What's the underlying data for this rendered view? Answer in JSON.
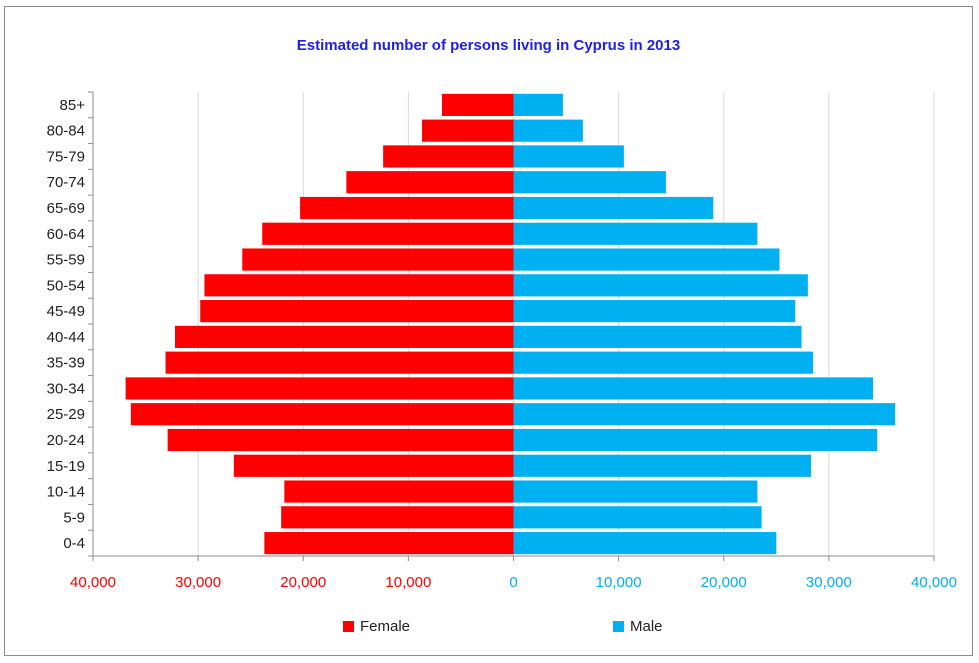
{
  "chart_data": {
    "type": "bar",
    "orientation": "horizontal",
    "title": "Estimated number of persons living in Cyprus in 2013",
    "categories": [
      "0-4",
      "5-9",
      "10-14",
      "15-19",
      "20-24",
      "25-29",
      "30-34",
      "35-39",
      "40-44",
      "45-49",
      "50-54",
      "55-59",
      "60-64",
      "65-69",
      "70-74",
      "75-79",
      "80-84",
      "85+"
    ],
    "series": [
      {
        "name": "Female",
        "color": "#ff0000",
        "values": [
          23700,
          22100,
          21800,
          26600,
          32900,
          36400,
          36900,
          33100,
          32200,
          29800,
          29400,
          25800,
          23900,
          20300,
          15900,
          12400,
          8700,
          6800
        ]
      },
      {
        "name": "Male",
        "color": "#00b0f0",
        "values": [
          25000,
          23600,
          23200,
          28300,
          34600,
          36300,
          34200,
          28500,
          27400,
          26800,
          28000,
          25300,
          23200,
          19000,
          14500,
          10500,
          6600,
          4700
        ]
      }
    ],
    "x_ticks": [
      "40,000",
      "30,000",
      "20,000",
      "10,000",
      "0",
      "10,000",
      "20,000",
      "30,000",
      "40,000"
    ],
    "xlim": [
      -40000,
      40000
    ],
    "grid": "vertical",
    "legend": "bottom"
  }
}
